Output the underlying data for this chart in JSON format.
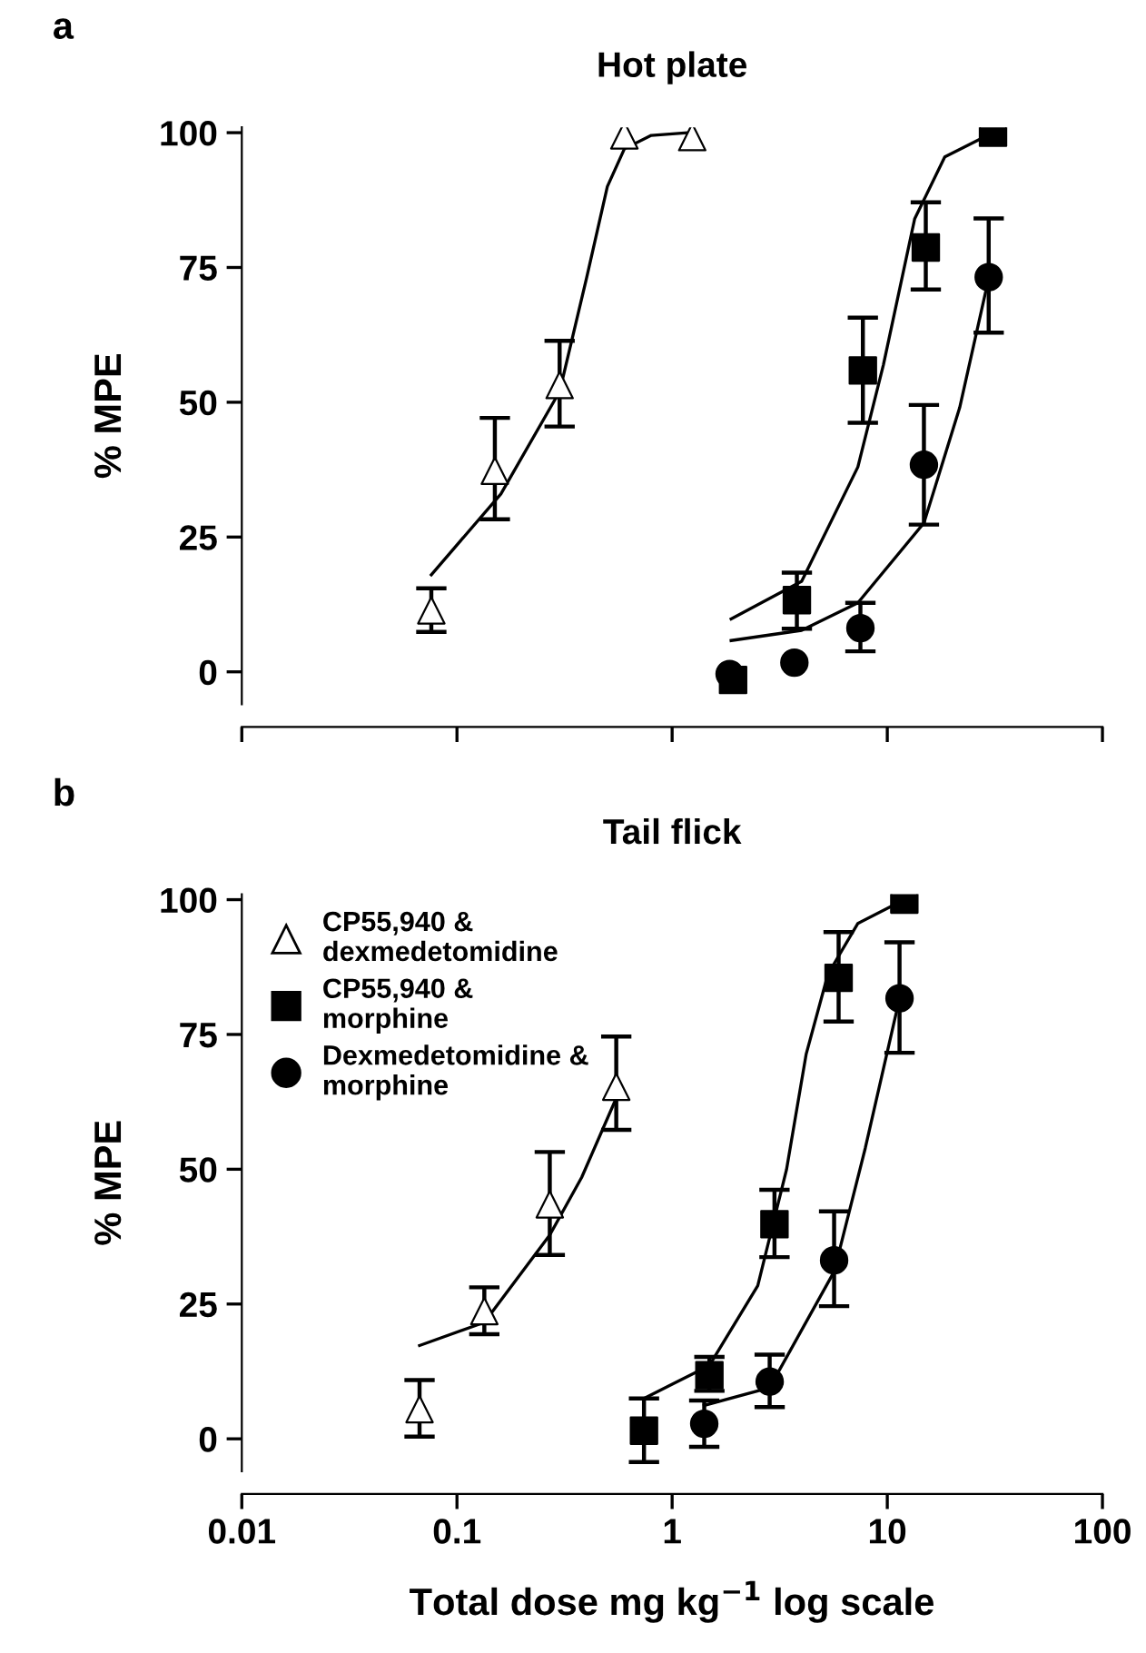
{
  "chart_data": [
    {
      "type": "scatter",
      "title": "Hot plate",
      "ylabel": "% MPE",
      "annotations": [
        "a"
      ],
      "xlim": [
        0.01,
        100
      ],
      "xticks": [
        0.01,
        0.1,
        1,
        10,
        100
      ],
      "ylim": [
        -6,
        101
      ],
      "yticks": [
        0,
        25,
        50,
        75,
        100
      ],
      "log": "x",
      "tick_labels": "y",
      "grid": false,
      "legend": false,
      "series": [
        {
          "type": "scatter",
          "marker": "triangle",
          "color": "#ffffff",
          "x": [
            0.076,
            0.15,
            0.3,
            0.6,
            1.24
          ],
          "values": [
            11.4,
            37.3,
            53.2,
            99.5,
            99.2
          ],
          "errors": [
            [
              7.4,
              15.5
            ],
            [
              28.3,
              47.1
            ],
            [
              45.5,
              61.4
            ],
            null,
            null
          ]
        },
        {
          "type": "scatter",
          "marker": "square",
          "color": "#000000",
          "x": [
            1.92,
            3.8,
            7.7,
            15.1,
            31
          ],
          "values": [
            -1.5,
            13.3,
            55.9,
            78.7,
            100
          ],
          "errors": [
            null,
            [
              8,
              18.4
            ],
            [
              46.2,
              65.7
            ],
            [
              70.9,
              87.1
            ],
            null
          ]
        },
        {
          "type": "scatter",
          "marker": "circle",
          "color": "#000000",
          "x": [
            1.85,
            3.7,
            7.5,
            14.8,
            29.6
          ],
          "values": [
            -0.4,
            1.7,
            8.1,
            38.4,
            73.2
          ],
          "errors": [
            null,
            null,
            [
              3.8,
              12.8
            ],
            [
              27.3,
              49.5
            ],
            [
              62.9,
              84.1
            ]
          ]
        },
        {
          "type": "line",
          "color": "#000000",
          "x": [
            0.076,
            0.16,
            0.3,
            0.4,
            0.5,
            0.6,
            0.8,
            1.2
          ],
          "values": [
            18,
            33,
            52,
            73,
            90,
            97,
            99.5,
            100
          ]
        },
        {
          "type": "line",
          "color": "#000000",
          "x": [
            1.88,
            4.0,
            7.3,
            9.6,
            13.4,
            18.5,
            31
          ],
          "values": [
            9.8,
            16.8,
            38,
            57,
            84,
            95.5,
            100
          ]
        },
        {
          "type": "line",
          "color": "#000000",
          "x": [
            1.88,
            4.0,
            7.3,
            14.8,
            21.7,
            29.6
          ],
          "values": [
            5.8,
            7.7,
            12.8,
            27.6,
            49,
            73
          ]
        }
      ]
    },
    {
      "type": "scatter",
      "title": "Tail flick",
      "ylabel": "% MPE",
      "xlabel": "Total dose mg kg$^{−1}$ log scale",
      "annotations": [
        "b"
      ],
      "xlim": [
        0.01,
        100
      ],
      "xticks": [
        0.01,
        0.1,
        1,
        10,
        100
      ],
      "ylim": [
        -6,
        101
      ],
      "yticks": [
        0,
        25,
        50,
        75,
        100
      ],
      "log": "x",
      "grid": false,
      "legend": "top left",
      "series": [
        {
          "type": "scatter",
          "name": "CP55,940 &\ndexmedetomidine",
          "marker": "triangle",
          "color": "#ffffff",
          "x": [
            0.067,
            0.134,
            0.27,
            0.55
          ],
          "values": [
            5.5,
            23.7,
            43.5,
            65.3
          ],
          "errors": [
            [
              0.4,
              10.9
            ],
            [
              19.4,
              28.1
            ],
            [
              34.1,
              53.2
            ],
            [
              57.3,
              74.6
            ]
          ]
        },
        {
          "type": "scatter",
          "name": "CP55,940 &\nmorphine",
          "marker": "square",
          "color": "#000000",
          "x": [
            0.74,
            1.49,
            2.99,
            5.94,
            12.0
          ],
          "values": [
            1.5,
            11.8,
            39.8,
            85.5,
            100
          ],
          "errors": [
            [
              -4.3,
              7.5
            ],
            [
              8.9,
              15.2
            ],
            [
              33.7,
              46.2
            ],
            [
              77.4,
              94
            ],
            null
          ]
        },
        {
          "type": "scatter",
          "name": "Dexmedetomidine &\nmorphine",
          "marker": "circle",
          "color": "#000000",
          "x": [
            1.41,
            2.84,
            5.66,
            11.4
          ],
          "values": [
            2.8,
            10.6,
            33.1,
            81.7
          ],
          "errors": [
            [
              -1.5,
              7.1
            ],
            [
              5.9,
              15.6
            ],
            [
              24.6,
              42.2
            ],
            [
              71.6,
              92.1
            ]
          ]
        },
        {
          "type": "line",
          "color": "#000000",
          "x": [
            0.067,
            0.134,
            0.27,
            0.38,
            0.55
          ],
          "values": [
            17.3,
            21.6,
            37.8,
            48.5,
            63.2
          ]
        },
        {
          "type": "line",
          "color": "#000000",
          "x": [
            0.74,
            1.49,
            2.5,
            3.4,
            4.2,
            5.3,
            7.3,
            12.0
          ],
          "values": [
            7.5,
            13.6,
            28.4,
            49.9,
            71.4,
            86.2,
            95.6,
            100
          ]
        },
        {
          "type": "line",
          "color": "#000000",
          "x": [
            1.41,
            2.84,
            5.66,
            7.9,
            11.4
          ],
          "values": [
            6.2,
            9.5,
            31,
            53.9,
            81.7
          ]
        }
      ]
    }
  ]
}
